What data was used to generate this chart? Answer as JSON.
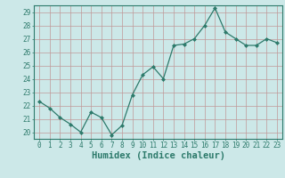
{
  "x": [
    0,
    1,
    2,
    3,
    4,
    5,
    6,
    7,
    8,
    9,
    10,
    11,
    12,
    13,
    14,
    15,
    16,
    17,
    18,
    19,
    20,
    21,
    22,
    23
  ],
  "y": [
    22.3,
    21.8,
    21.1,
    20.6,
    20.0,
    21.5,
    21.1,
    19.8,
    20.5,
    22.8,
    24.3,
    24.9,
    24.0,
    26.5,
    26.6,
    27.0,
    28.0,
    29.3,
    27.5,
    27.0,
    26.5,
    26.5,
    27.0,
    26.7
  ],
  "xlabel": "Humidex (Indice chaleur)",
  "xlim": [
    -0.5,
    23.5
  ],
  "ylim": [
    19.5,
    29.5
  ],
  "yticks": [
    20,
    21,
    22,
    23,
    24,
    25,
    26,
    27,
    28,
    29
  ],
  "xticks": [
    0,
    1,
    2,
    3,
    4,
    5,
    6,
    7,
    8,
    9,
    10,
    11,
    12,
    13,
    14,
    15,
    16,
    17,
    18,
    19,
    20,
    21,
    22,
    23
  ],
  "line_color": "#2d7a6b",
  "marker": "D",
  "marker_size": 2.0,
  "bg_color": "#cce8e8",
  "grid_color": "#c09898",
  "tick_fontsize": 5.5,
  "xlabel_fontsize": 7.5
}
